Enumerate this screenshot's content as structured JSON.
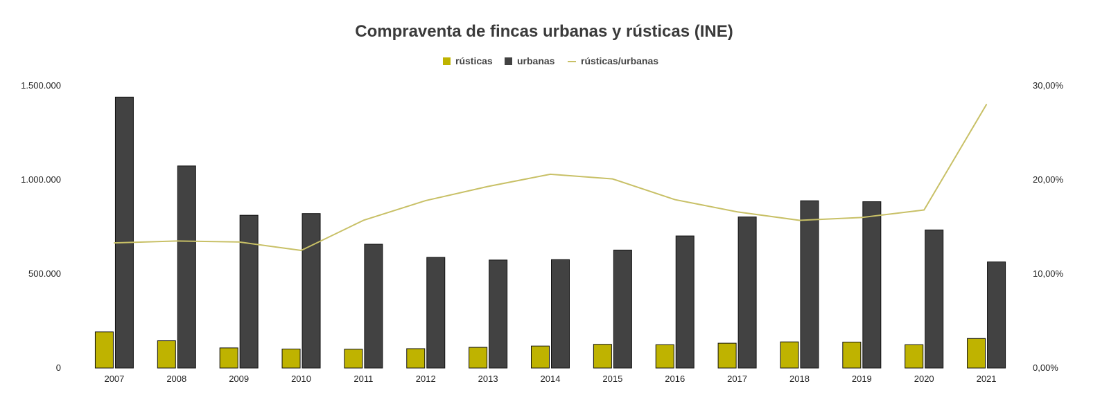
{
  "chart_data": {
    "type": "bar",
    "title": "Compraventa de fincas urbanas y rústicas (INE)",
    "categories": [
      "2007",
      "2008",
      "2009",
      "2010",
      "2011",
      "2012",
      "2013",
      "2014",
      "2015",
      "2016",
      "2017",
      "2018",
      "2019",
      "2020",
      "2021"
    ],
    "series": [
      {
        "name": "rústicas",
        "type": "bar",
        "axis": "left",
        "color": "#bfb300",
        "values": [
          192000,
          145000,
          107000,
          101000,
          100000,
          103000,
          110000,
          117000,
          126000,
          124000,
          132000,
          139000,
          138000,
          124000,
          157000
        ]
      },
      {
        "name": "urbanas",
        "type": "bar",
        "axis": "left",
        "color": "#424242",
        "values": [
          1440000,
          1074000,
          812000,
          821000,
          658000,
          588000,
          574000,
          576000,
          627000,
          702000,
          803000,
          889000,
          884000,
          734000,
          564000
        ]
      },
      {
        "name": "rústicas/urbanas",
        "type": "line",
        "axis": "right",
        "color": "#c8c066",
        "values": [
          0.133,
          0.135,
          0.134,
          0.125,
          0.157,
          0.178,
          0.193,
          0.206,
          0.201,
          0.179,
          0.166,
          0.157,
          0.16,
          0.168,
          0.28
        ]
      }
    ],
    "y_left": {
      "min": 0,
      "max": 1500000,
      "ticks": [
        0,
        500000,
        1000000,
        1500000
      ],
      "tick_labels": [
        "0",
        "500.000",
        "1.000.000",
        "1.500.000"
      ]
    },
    "y_right": {
      "min": 0,
      "max": 0.3,
      "ticks": [
        0,
        0.1,
        0.2,
        0.3
      ],
      "tick_labels": [
        "0,00%",
        "10,00%",
        "20,00%",
        "30,00%"
      ]
    },
    "legend_position": "top-center",
    "grid": false
  }
}
